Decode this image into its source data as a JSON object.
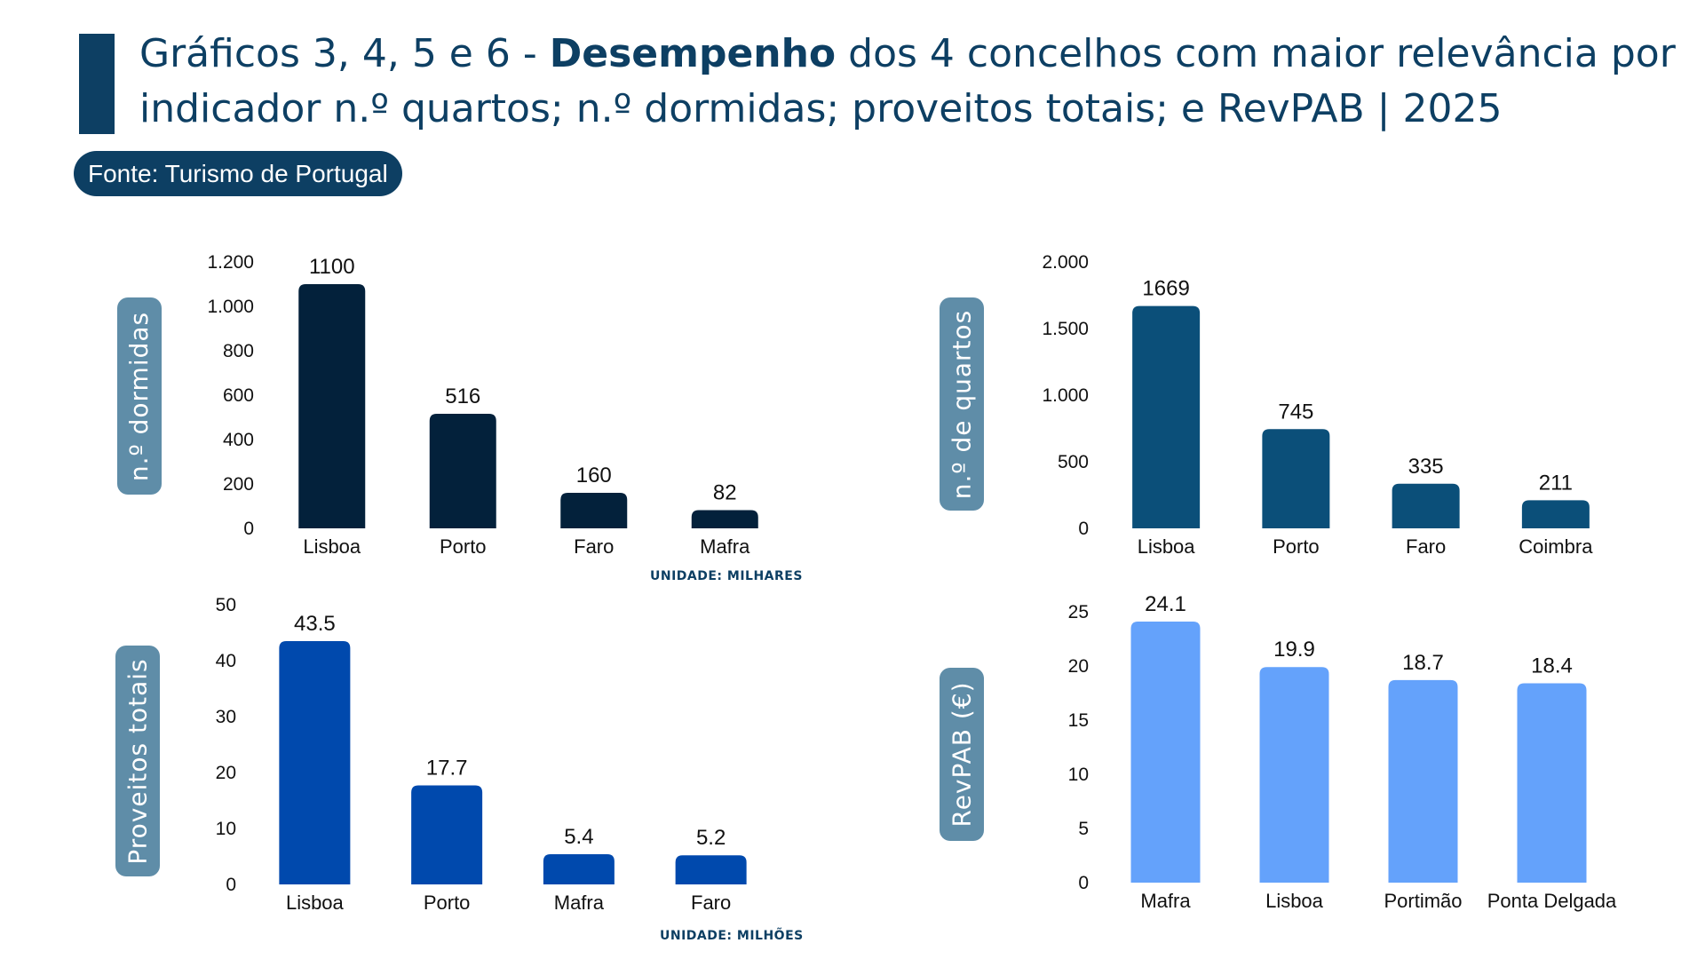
{
  "header": {
    "title_prefix": "Gráficos 3, 4, 5 e 6 - ",
    "title_bold": "Desempenho",
    "title_suffix": " dos 4 concelhos com maior relevância por indicador n.º quartos; n.º dormidas; proveitos totais; e RevPAB | 2025",
    "source": "Fonte: Turismo de Portugal"
  },
  "colors": {
    "title_bar": "#0d3f63",
    "source_bg": "#0d3f63"
  },
  "units": {
    "dormidas": "UNIDADE: MILHARES",
    "proveitos": "UNIDADE: MILHÕES"
  },
  "chart_data": [
    {
      "type": "bar",
      "title": "",
      "ylabel": "n.º dormidas",
      "categories": [
        "Lisboa",
        "Porto",
        "Faro",
        "Mafra"
      ],
      "values": [
        1100,
        516,
        160,
        82
      ],
      "value_labels": [
        "1100",
        "516",
        "160",
        "82"
      ],
      "yticks": [
        0,
        200,
        400,
        600,
        800,
        1000,
        1200
      ],
      "ytick_labels": [
        "0",
        "200",
        "400",
        "600",
        "800",
        "1.000",
        "1.200"
      ],
      "ylim": [
        0,
        1200
      ],
      "color": "#03213b"
    },
    {
      "type": "bar",
      "title": "",
      "ylabel": "n.º de quartos",
      "categories": [
        "Lisboa",
        "Porto",
        "Faro",
        "Coimbra"
      ],
      "values": [
        1669,
        745,
        335,
        211
      ],
      "value_labels": [
        "1669",
        "745",
        "335",
        "211"
      ],
      "yticks": [
        0,
        500,
        1000,
        1500,
        2000
      ],
      "ytick_labels": [
        "0",
        "500",
        "1.000",
        "1.500",
        "2.000"
      ],
      "ylim": [
        0,
        2000
      ],
      "color": "#0b4f79"
    },
    {
      "type": "bar",
      "title": "",
      "ylabel": "Proveitos totais",
      "categories": [
        "Lisboa",
        "Porto",
        "Mafra",
        "Faro"
      ],
      "values": [
        43.5,
        17.7,
        5.4,
        5.2
      ],
      "value_labels": [
        "43.5",
        "17.7",
        "5.4",
        "5.2"
      ],
      "yticks": [
        0,
        10,
        20,
        30,
        40,
        50
      ],
      "ytick_labels": [
        "0",
        "10",
        "20",
        "30",
        "40",
        "50"
      ],
      "ylim": [
        0,
        50
      ],
      "color": "#0049ad"
    },
    {
      "type": "bar",
      "title": "",
      "ylabel": "RevPAB (€)",
      "categories": [
        "Mafra",
        "Lisboa",
        "Portimão",
        "Ponta Delgada"
      ],
      "values": [
        24.1,
        19.9,
        18.7,
        18.4
      ],
      "value_labels": [
        "24.1",
        "19.9",
        "18.7",
        "18.4"
      ],
      "yticks": [
        0,
        5,
        10,
        15,
        20,
        25
      ],
      "ytick_labels": [
        "0",
        "5",
        "10",
        "15",
        "20",
        "25"
      ],
      "ylim": [
        0,
        25
      ],
      "color": "#64a2fb"
    }
  ]
}
